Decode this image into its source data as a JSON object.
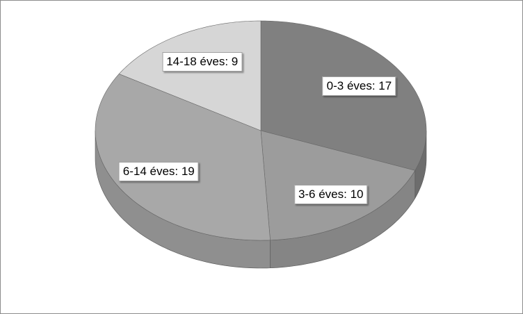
{
  "chart_data": {
    "type": "pie3d",
    "values": [
      17,
      10,
      19,
      9
    ],
    "value_labels": [
      "0-3 éves: 17",
      "3-6 éves: 10",
      "6-14 éves: 19",
      "14-18 éves: 9"
    ],
    "colors": [
      "#808080",
      "#9c9c9c",
      "#a8a8a8",
      "#d6d6d6"
    ]
  }
}
